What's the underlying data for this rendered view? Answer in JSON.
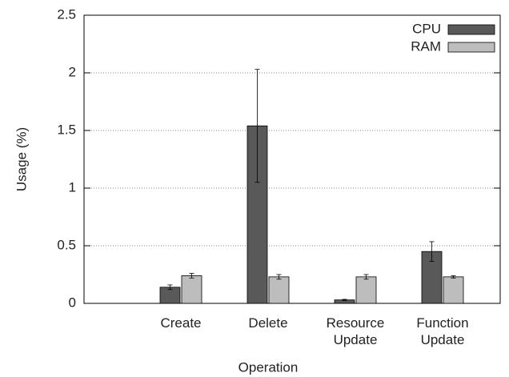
{
  "chart_data": {
    "type": "bar",
    "categories": [
      "Create",
      "Delete",
      "Resource Update",
      "Function Update"
    ],
    "series": [
      {
        "name": "CPU",
        "color": "#595959",
        "values": [
          0.14,
          1.54,
          0.03,
          0.45
        ],
        "errors": [
          0.02,
          0.49,
          0.005,
          0.085
        ]
      },
      {
        "name": "RAM",
        "color": "#bdbdbd",
        "values": [
          0.24,
          0.23,
          0.23,
          0.23
        ],
        "errors": [
          0.02,
          0.02,
          0.02,
          0.01
        ]
      }
    ],
    "xlabel": "Operation",
    "ylabel": "Usage (%)",
    "ylim": [
      0,
      2.5
    ],
    "yticks": [
      0,
      0.5,
      1,
      1.5,
      2,
      2.5
    ],
    "grid": true,
    "legend": "upper right"
  }
}
